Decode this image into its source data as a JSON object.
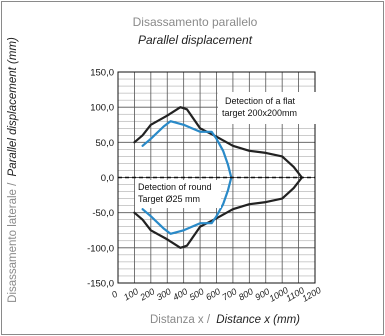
{
  "chart_data": {
    "type": "line",
    "title": "Disassamento parallelo",
    "subtitle": "Parallel displacement",
    "ylabel": {
      "it": "Disassamento laterale /",
      "en": "Parallel displacement (mm)"
    },
    "xlabel": {
      "it": "Distanza x /",
      "en": "Distance x (mm)"
    },
    "xlim": [
      0,
      1200
    ],
    "ylim": [
      -150,
      150
    ],
    "x_ticks": [
      "0",
      "100",
      "200",
      "300",
      "400",
      "500",
      "600",
      "700",
      "800",
      "900",
      "1000",
      "1100",
      "1200"
    ],
    "y_ticks": [
      "150,0",
      "100,0",
      "50,0",
      "0,0",
      "-50,0",
      "-100,0",
      "-150,0"
    ],
    "grid": true,
    "series": [
      {
        "name": "Detection of a flat target 200x200mm",
        "color": "#222222",
        "upper": [
          [
            100,
            50
          ],
          [
            150,
            60
          ],
          [
            200,
            75
          ],
          [
            300,
            88
          ],
          [
            380,
            100
          ],
          [
            420,
            97
          ],
          [
            500,
            70
          ],
          [
            600,
            58
          ],
          [
            700,
            45
          ],
          [
            800,
            38
          ],
          [
            900,
            35
          ],
          [
            1000,
            30
          ],
          [
            1070,
            15
          ],
          [
            1120,
            0
          ]
        ],
        "lower": [
          [
            1120,
            0
          ],
          [
            1070,
            -15
          ],
          [
            1000,
            -30
          ],
          [
            900,
            -35
          ],
          [
            800,
            -38
          ],
          [
            700,
            -45
          ],
          [
            600,
            -58
          ],
          [
            500,
            -70
          ],
          [
            420,
            -97
          ],
          [
            380,
            -100
          ],
          [
            300,
            -88
          ],
          [
            200,
            -75
          ],
          [
            150,
            -60
          ],
          [
            100,
            -50
          ]
        ]
      },
      {
        "name": "Detection of round Target Ø25 mm",
        "color": "#2a8ac8",
        "upper": [
          [
            150,
            45
          ],
          [
            200,
            55
          ],
          [
            280,
            73
          ],
          [
            320,
            80
          ],
          [
            400,
            75
          ],
          [
            500,
            65
          ],
          [
            570,
            65
          ],
          [
            600,
            55
          ],
          [
            640,
            38
          ],
          [
            670,
            18
          ],
          [
            690,
            0
          ]
        ],
        "lower": [
          [
            690,
            0
          ],
          [
            670,
            -18
          ],
          [
            640,
            -38
          ],
          [
            600,
            -55
          ],
          [
            570,
            -65
          ],
          [
            500,
            -65
          ],
          [
            400,
            -75
          ],
          [
            320,
            -80
          ],
          [
            280,
            -73
          ],
          [
            200,
            -55
          ],
          [
            150,
            -45
          ]
        ]
      }
    ],
    "annotations": [
      "Detection of a flat target 200x200mm",
      "Detection of round Target Ø25 mm"
    ]
  }
}
